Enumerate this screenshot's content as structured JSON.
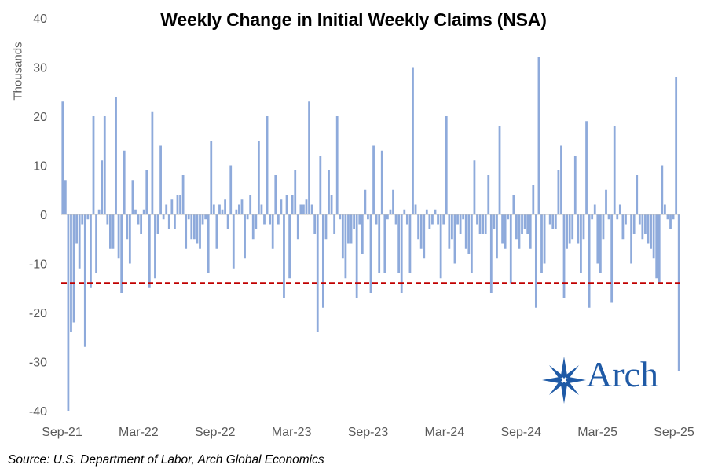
{
  "chart_data": {
    "type": "bar",
    "title": "Weekly Change in Initial Weekly Claims (NSA)",
    "ylabel": "Thousands",
    "xlabel": "",
    "ylim": [
      -40,
      40
    ],
    "yticks": [
      40,
      30,
      20,
      10,
      0,
      -10,
      -20,
      -30,
      -40
    ],
    "xtick_labels": [
      "Sep-21",
      "Mar-22",
      "Sep-22",
      "Mar-23",
      "Sep-23",
      "Mar-24",
      "Sep-24",
      "Mar-25",
      "Sep-25"
    ],
    "reference_line": {
      "value": -14,
      "style": "dashed",
      "color": "#c00000"
    },
    "bar_color": "#8eaadb",
    "values": [
      23,
      7,
      -40,
      -24,
      -22,
      -6,
      -11,
      -2,
      -27,
      -1,
      -15,
      20,
      -12,
      1,
      11,
      20,
      -2,
      -7,
      -7,
      24,
      -9,
      -16,
      13,
      -5,
      -10,
      7,
      1,
      -2,
      -4,
      1,
      9,
      -15,
      21,
      -13,
      -4,
      14,
      -1,
      2,
      -3,
      3,
      -3,
      4,
      4,
      8,
      -7,
      -1,
      -5,
      -5,
      -6,
      -7,
      -2,
      -1,
      -12,
      15,
      2,
      -7,
      2,
      1,
      3,
      -3,
      10,
      -11,
      1,
      2,
      3,
      -9,
      -1,
      4,
      -5,
      -3,
      15,
      2,
      -2,
      20,
      -2,
      -7,
      8,
      -2,
      3,
      -17,
      4,
      -13,
      4,
      9,
      -5,
      2,
      2,
      3,
      23,
      2,
      -4,
      -24,
      12,
      -19,
      -5,
      9,
      4,
      -4,
      20,
      -1,
      -9,
      -13,
      -6,
      -6,
      -3,
      -17,
      -2,
      -8,
      5,
      -1,
      -16,
      14,
      -2,
      -12,
      13,
      -12,
      -1,
      1,
      5,
      -2,
      -12,
      -16,
      1,
      -2,
      -12,
      30,
      2,
      -5,
      -7,
      -9,
      1,
      -3,
      -2,
      1,
      -2,
      -13,
      -2,
      20,
      -7,
      -5,
      -10,
      -2,
      -4,
      -1,
      -7,
      -8,
      -12,
      11,
      -2,
      -4,
      -4,
      -4,
      8,
      -16,
      -3,
      -9,
      18,
      -6,
      -7,
      -1,
      -14,
      4,
      -5,
      -7,
      -4,
      -3,
      -4,
      -7,
      6,
      -19,
      32,
      -12,
      -10,
      0,
      -2,
      -3,
      -3,
      9,
      14,
      -17,
      -7,
      -6,
      -5,
      12,
      -6,
      -12,
      -5,
      19,
      -19,
      -1,
      2,
      -10,
      -12,
      -5,
      5,
      -1,
      -18,
      18,
      -1,
      2,
      -5,
      -2,
      0,
      -10,
      -4,
      8,
      -2,
      -5,
      -4,
      -6,
      -7,
      -9,
      -13,
      -14,
      10,
      2,
      -1,
      -3,
      -1,
      28,
      -32
    ]
  },
  "logo": {
    "text": "Arch"
  },
  "source": "Source: U.S. Department of Labor, Arch Global Economics"
}
